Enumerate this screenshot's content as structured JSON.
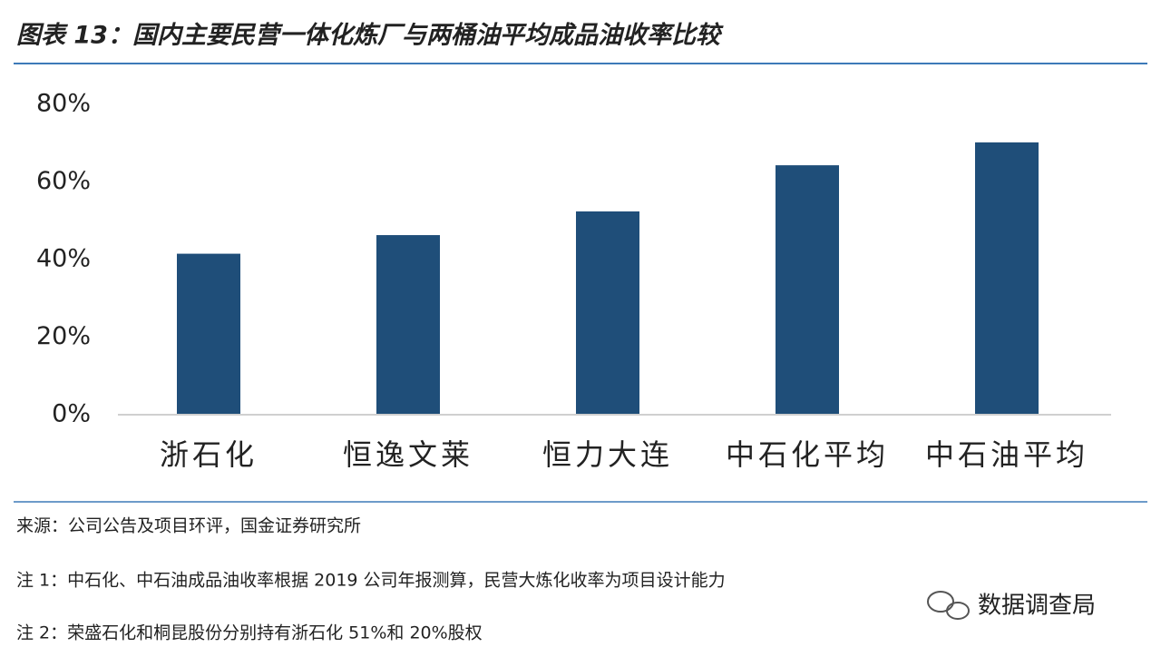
{
  "chart_data": {
    "type": "bar",
    "title": "图表 13：国内主要民营一体化炼厂与两桶油平均成品油收率比较",
    "categories": [
      "浙石化",
      "恒逸文莱",
      "恒力大连",
      "中石化平均",
      "中石油平均"
    ],
    "values": [
      41.5,
      46.3,
      52.4,
      64.3,
      70.2
    ],
    "color": "#1f4e79",
    "ylim": [
      0,
      80
    ],
    "yticks": [
      {
        "value": 0,
        "label": "0%"
      },
      {
        "value": 20,
        "label": "20%"
      },
      {
        "value": 40,
        "label": "40%"
      },
      {
        "value": 60,
        "label": "60%"
      },
      {
        "value": 80,
        "label": "80%"
      }
    ],
    "grid": false,
    "source": "来源：公司公告及项目环评，国金证券研究所",
    "notes": [
      "注 1：中石化、中石油成品油收率根据 2019 公司年报测算，民营大炼化收率为项目设计能力",
      "注 2：荣盛石化和桐昆股份分别持有浙石化 51%和 20%股权"
    ]
  },
  "watermark": "数据调查局"
}
